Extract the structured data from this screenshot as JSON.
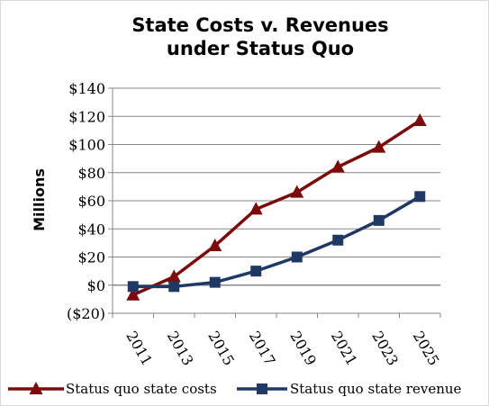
{
  "chart_data": {
    "type": "line",
    "title_lines": [
      "State Costs v. Revenues",
      "under Status Quo"
    ],
    "xlabel": "",
    "ylabel": "Millions",
    "categories": [
      "2011",
      "2013",
      "2015",
      "2017",
      "2019",
      "2021",
      "2023",
      "2025"
    ],
    "yticks": [
      "($20)",
      "$0",
      "$20",
      "$40",
      "$60",
      "$80",
      "$100",
      "$120",
      "$140"
    ],
    "ylim": [
      -20,
      140
    ],
    "ystep": 20,
    "grid": "horizontal",
    "legend_position": "bottom",
    "series": [
      {
        "name": "Status quo state costs",
        "color": "#7b0a0a",
        "marker": "triangle",
        "values": [
          -7,
          6,
          28,
          54,
          66,
          84,
          98,
          117
        ]
      },
      {
        "name": "Status quo state revenue",
        "color": "#1f3864",
        "marker": "square",
        "values": [
          -1,
          -1,
          2,
          10,
          20,
          32,
          46,
          63
        ]
      }
    ]
  }
}
